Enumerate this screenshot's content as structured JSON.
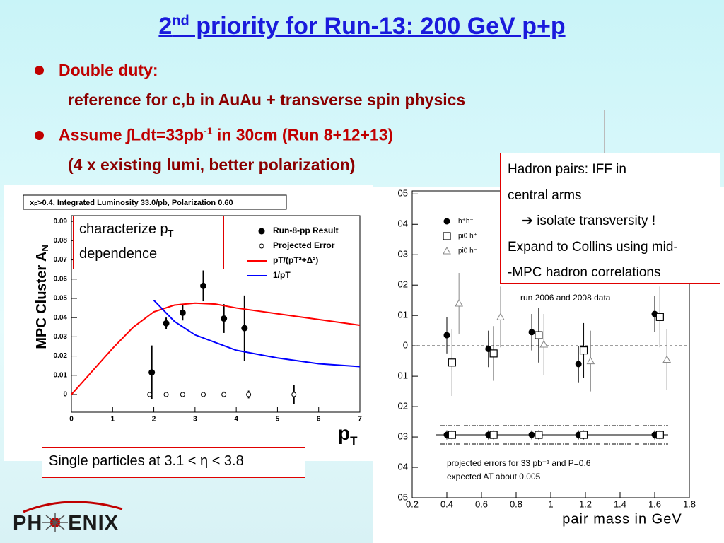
{
  "slide": {
    "title": "2",
    "title_sup": "nd",
    "title_rest": " priority for Run-13: 200 GeV p+p",
    "bullets": [
      {
        "text": "Double duty:",
        "sub": "reference for c,b in AuAu + transverse spin physics"
      },
      {
        "text": "Assume ∫Ldt=33pb",
        "sup": "-1",
        "text_rest": " in 30cm (Run 8+12+13)",
        "sub": "(4 x existing lumi, better polarization)"
      }
    ],
    "callout_pt": {
      "text": "characterize p",
      "sub": "T",
      "line2": "dependence"
    },
    "callout_eta": "Single particles at 3.1 < η < 3.8",
    "callout_iff": [
      "Hadron pairs:  IFF in",
      "central arms",
      "isolate transversity !",
      "Expand to Collins using mid-",
      "-MPC hadron correlations"
    ],
    "logo_left": "PH",
    "logo_right": "ENIX"
  },
  "chart_data": [
    {
      "type": "scatter",
      "title": "x",
      "title_sub": "F",
      "title_rest": ">0.4, Integrated Luminosity 33.0/pb, Polarization 0.60",
      "y_label": "MPC Cluster A",
      "y_label_sub": "N",
      "x_label": "p",
      "x_label_sub": "T",
      "xlim": [
        0,
        7
      ],
      "xticks": [
        0,
        1,
        2,
        3,
        4,
        5,
        6,
        7
      ],
      "ylim": [
        -0.0092,
        0.093
      ],
      "yticks": [
        0,
        0.01,
        0.02,
        0.03,
        0.04,
        0.05,
        0.06,
        0.07,
        0.08,
        0.09
      ],
      "series": [
        {
          "name": "Run-8-pp Result",
          "marker": "filled-circle",
          "color": "#000000",
          "x": [
            1.95,
            2.3,
            2.7,
            3.2,
            3.7,
            4.2
          ],
          "values": [
            0.0115,
            0.037,
            0.0425,
            0.0565,
            0.0395,
            0.0345
          ],
          "errors": [
            0.014,
            0.003,
            0.004,
            0.008,
            0.0075,
            0.017
          ]
        },
        {
          "name": "Projected Error",
          "marker": "open-circle",
          "color": "#000000",
          "x": [
            1.9,
            2.3,
            2.7,
            3.2,
            3.7,
            4.3,
            5.4
          ],
          "values": [
            0,
            0,
            0,
            0,
            0,
            0,
            0
          ],
          "errors": [
            0.001,
            0.001,
            0.001,
            0.0012,
            0.0015,
            0.002,
            0.005
          ]
        },
        {
          "name": "pT/(pT²+Δ²)",
          "marker": "line",
          "color": "#ff0000",
          "x": [
            0,
            0.5,
            1,
            1.5,
            2,
            2.5,
            3,
            3.5,
            4,
            5,
            6,
            7
          ],
          "values": [
            0,
            0.012,
            0.024,
            0.035,
            0.043,
            0.0465,
            0.0475,
            0.047,
            0.045,
            0.042,
            0.039,
            0.036
          ]
        },
        {
          "name": "1/pT",
          "marker": "line",
          "color": "#0000ff",
          "x": [
            2,
            2.5,
            3,
            3.5,
            4,
            5,
            6,
            7
          ],
          "values": [
            0.049,
            0.038,
            0.031,
            0.027,
            0.023,
            0.019,
            0.016,
            0.0145
          ]
        }
      ]
    },
    {
      "type": "scatter",
      "x_label": "pair mass in GeV",
      "xlim": [
        0.2,
        1.8
      ],
      "xticks": [
        0.2,
        0.4,
        0.6,
        0.8,
        1,
        1.2,
        1.4,
        1.6,
        1.8
      ],
      "ylim": [
        -0.05,
        0.051
      ],
      "yticks": [
        {
          "value": 0.05,
          "label": "05"
        },
        {
          "value": 0.04,
          "label": "04"
        },
        {
          "value": 0.03,
          "label": "03"
        },
        {
          "value": 0.02,
          "label": "02"
        },
        {
          "value": 0.01,
          "label": "01"
        },
        0,
        {
          "value": -0.01,
          "label": "01"
        },
        {
          "value": -0.02,
          "label": "02"
        },
        {
          "value": -0.03,
          "label": "03"
        },
        {
          "value": -0.04,
          "label": "04"
        },
        {
          "value": -0.05,
          "label": "05"
        }
      ],
      "annotations": [
        "run 2006 and 2008 data",
        "projected errors for 33 pb⁻¹ and P=0.6",
        "expected AT about 0.005"
      ],
      "series": [
        {
          "name": "h⁺h⁻",
          "marker": "filled-circle",
          "color": "#000000",
          "x": [
            0.4,
            0.64,
            0.89,
            1.16,
            1.6
          ],
          "values": [
            0.0035,
            -0.001,
            0.0045,
            -0.006,
            0.0105
          ],
          "errors": [
            0.006,
            0.006,
            0.006,
            0.006,
            0.006
          ]
        },
        {
          "name": "pi0 h⁺",
          "marker": "open-square",
          "color": "#000000",
          "x": [
            0.43,
            0.67,
            0.93,
            1.19,
            1.63
          ],
          "values": [
            -0.0055,
            -0.0025,
            0.0035,
            -0.0015,
            0.0095
          ],
          "errors": [
            0.011,
            0.009,
            0.009,
            0.009,
            0.01
          ]
        },
        {
          "name": "pi0 h⁻",
          "marker": "open-triangle",
          "color": "#888888",
          "x": [
            0.47,
            0.71,
            0.96,
            1.23,
            1.67
          ],
          "values": [
            0.014,
            0.0095,
            0.0005,
            -0.005,
            -0.0045
          ],
          "errors": [
            0.01,
            0.01,
            0.01,
            0.01,
            0.01
          ]
        }
      ],
      "projected": [
        {
          "marker": "filled-circle",
          "color": "#000000",
          "x": [
            0.4,
            0.64,
            0.89,
            1.16,
            1.6
          ],
          "values": [
            -0.0293,
            -0.0293,
            -0.0293,
            -0.0293,
            -0.0293
          ],
          "errors": [
            0.0015,
            0.0015,
            0.0015,
            0.0015,
            0.0015
          ]
        },
        {
          "marker": "open-square",
          "color": "#000000",
          "x": [
            0.43,
            0.67,
            0.93,
            1.19,
            1.63
          ],
          "values": [
            -0.0293,
            -0.0293,
            -0.0293,
            -0.0293,
            -0.0293
          ],
          "errors": [
            0.0015,
            0.0015,
            0.0015,
            0.0015,
            0.0015
          ]
        }
      ]
    }
  ]
}
